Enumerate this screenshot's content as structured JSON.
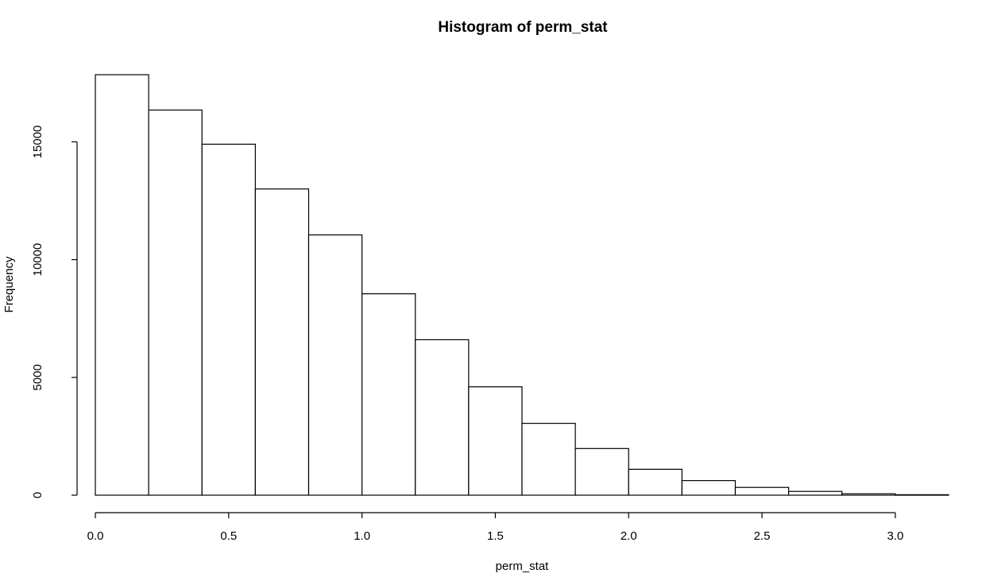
{
  "chart_data": {
    "type": "bar",
    "subtype": "histogram",
    "title": "Histogram of perm_stat",
    "xlabel": "perm_stat",
    "ylabel": "Frequency",
    "bins": [
      {
        "x0": 0.0,
        "x1": 0.2,
        "count": 17850
      },
      {
        "x0": 0.2,
        "x1": 0.4,
        "count": 16350
      },
      {
        "x0": 0.4,
        "x1": 0.6,
        "count": 14900
      },
      {
        "x0": 0.6,
        "x1": 0.8,
        "count": 13000
      },
      {
        "x0": 0.8,
        "x1": 1.0,
        "count": 11050
      },
      {
        "x0": 1.0,
        "x1": 1.2,
        "count": 8550
      },
      {
        "x0": 1.2,
        "x1": 1.4,
        "count": 6600
      },
      {
        "x0": 1.4,
        "x1": 1.6,
        "count": 4600
      },
      {
        "x0": 1.6,
        "x1": 1.8,
        "count": 3050
      },
      {
        "x0": 1.8,
        "x1": 2.0,
        "count": 1980
      },
      {
        "x0": 2.0,
        "x1": 2.2,
        "count": 1100
      },
      {
        "x0": 2.2,
        "x1": 2.4,
        "count": 620
      },
      {
        "x0": 2.4,
        "x1": 2.6,
        "count": 330
      },
      {
        "x0": 2.6,
        "x1": 2.8,
        "count": 160
      },
      {
        "x0": 2.8,
        "x1": 3.0,
        "count": 60
      },
      {
        "x0": 3.0,
        "x1": 3.2,
        "count": 20
      }
    ],
    "xlim": [
      0.0,
      3.2
    ],
    "ylim": [
      0,
      17850
    ],
    "xticks": [
      {
        "value": 0.0,
        "label": "0.0"
      },
      {
        "value": 0.5,
        "label": "0.5"
      },
      {
        "value": 1.0,
        "label": "1.0"
      },
      {
        "value": 1.5,
        "label": "1.5"
      },
      {
        "value": 2.0,
        "label": "2.0"
      },
      {
        "value": 2.5,
        "label": "2.5"
      },
      {
        "value": 3.0,
        "label": "3.0"
      }
    ],
    "yticks": [
      {
        "value": 0,
        "label": "0"
      },
      {
        "value": 5000,
        "label": "5000"
      },
      {
        "value": 10000,
        "label": "10000"
      },
      {
        "value": 15000,
        "label": "15000"
      }
    ],
    "grid": false,
    "legend": "none",
    "colors": {
      "fill": "#ffffff",
      "stroke": "#000000"
    }
  }
}
